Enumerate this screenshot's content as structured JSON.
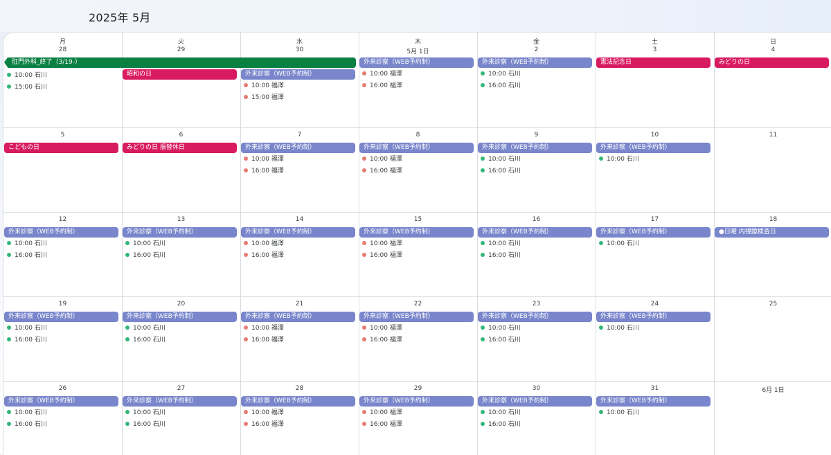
{
  "header": {
    "title": "2025年 5月"
  },
  "colors": {
    "blue": "#7986cb",
    "red": "#d81b60",
    "green": "#0b8043",
    "dot_green": "#33b679",
    "dot_salmon": "#e67c73"
  },
  "weekdays": [
    "月",
    "火",
    "水",
    "木",
    "金",
    "土",
    "日"
  ],
  "weeks": [
    {
      "days": [
        {
          "num": "28",
          "pill": null,
          "events": [
            {
              "time": "10:00",
              "name": "石川",
              "dot": "green"
            },
            {
              "time": "15:00",
              "name": "石川",
              "dot": "green"
            }
          ]
        },
        {
          "num": "29",
          "pill": {
            "label": "昭和の日",
            "color": "red"
          },
          "events": []
        },
        {
          "num": "30",
          "pill": {
            "label": "外来診察（WEB予約制）",
            "color": "blue"
          },
          "events": [
            {
              "time": "10:00",
              "name": "福澤",
              "dot": "salmon"
            },
            {
              "time": "15:00",
              "name": "福澤",
              "dot": "salmon"
            }
          ]
        },
        {
          "num": "5月 1日",
          "pill": {
            "label": "外来診察（WEB予約制）",
            "color": "blue"
          },
          "events": [
            {
              "time": "10:00",
              "name": "福澤",
              "dot": "salmon"
            },
            {
              "time": "16:00",
              "name": "福澤",
              "dot": "salmon"
            }
          ]
        },
        {
          "num": "2",
          "pill": {
            "label": "外来診察（WEB予約制）",
            "color": "blue"
          },
          "events": [
            {
              "time": "10:00",
              "name": "石川",
              "dot": "green"
            },
            {
              "time": "16:00",
              "name": "石川",
              "dot": "green"
            }
          ]
        },
        {
          "num": "3",
          "pill": {
            "label": "憲法記念日",
            "color": "red"
          },
          "events": []
        },
        {
          "num": "4",
          "pill": {
            "label": "みどりの日",
            "color": "red"
          },
          "events": []
        }
      ],
      "spanning": {
        "label": "肛門外科_終了（3/19-）",
        "color": "green"
      }
    },
    {
      "days": [
        {
          "num": "5",
          "pill": {
            "label": "こどもの日",
            "color": "red"
          },
          "events": []
        },
        {
          "num": "6",
          "pill": {
            "label": "みどりの日 振替休日",
            "color": "red"
          },
          "events": []
        },
        {
          "num": "7",
          "pill": {
            "label": "外来診察（WEB予約制）",
            "color": "blue"
          },
          "events": [
            {
              "time": "10:00",
              "name": "福澤",
              "dot": "salmon"
            },
            {
              "time": "16:00",
              "name": "福澤",
              "dot": "salmon"
            }
          ]
        },
        {
          "num": "8",
          "pill": {
            "label": "外来診察（WEB予約制）",
            "color": "blue"
          },
          "events": [
            {
              "time": "10:00",
              "name": "福澤",
              "dot": "salmon"
            },
            {
              "time": "16:00",
              "name": "福澤",
              "dot": "salmon"
            }
          ]
        },
        {
          "num": "9",
          "pill": {
            "label": "外来診察（WEB予約制）",
            "color": "blue"
          },
          "events": [
            {
              "time": "10:00",
              "name": "石川",
              "dot": "green"
            },
            {
              "time": "16:00",
              "name": "石川",
              "dot": "green"
            }
          ]
        },
        {
          "num": "10",
          "pill": {
            "label": "外来診察（WEB予約制）",
            "color": "blue"
          },
          "events": [
            {
              "time": "10:00",
              "name": "石川",
              "dot": "green"
            }
          ]
        },
        {
          "num": "11",
          "pill": null,
          "events": []
        }
      ]
    },
    {
      "days": [
        {
          "num": "12",
          "pill": {
            "label": "外来診察（WEB予約制）",
            "color": "blue"
          },
          "events": [
            {
              "time": "10:00",
              "name": "石川",
              "dot": "green"
            },
            {
              "time": "16:00",
              "name": "石川",
              "dot": "green"
            }
          ]
        },
        {
          "num": "13",
          "pill": {
            "label": "外来診察（WEB予約制）",
            "color": "blue"
          },
          "events": [
            {
              "time": "10:00",
              "name": "石川",
              "dot": "green"
            },
            {
              "time": "16:00",
              "name": "石川",
              "dot": "green"
            }
          ]
        },
        {
          "num": "14",
          "pill": {
            "label": "外来診察（WEB予約制）",
            "color": "blue"
          },
          "events": [
            {
              "time": "10:00",
              "name": "福澤",
              "dot": "salmon"
            },
            {
              "time": "16:00",
              "name": "福澤",
              "dot": "salmon"
            }
          ]
        },
        {
          "num": "15",
          "pill": {
            "label": "外来診察（WEB予約制）",
            "color": "blue"
          },
          "events": [
            {
              "time": "10:00",
              "name": "福澤",
              "dot": "salmon"
            },
            {
              "time": "16:00",
              "name": "福澤",
              "dot": "salmon"
            }
          ]
        },
        {
          "num": "16",
          "pill": {
            "label": "外来診察（WEB予約制）",
            "color": "blue"
          },
          "events": [
            {
              "time": "10:00",
              "name": "石川",
              "dot": "green"
            },
            {
              "time": "16:00",
              "name": "石川",
              "dot": "green"
            }
          ]
        },
        {
          "num": "17",
          "pill": {
            "label": "外来診察（WEB予約制）",
            "color": "blue"
          },
          "events": [
            {
              "time": "10:00",
              "name": "石川",
              "dot": "green"
            }
          ]
        },
        {
          "num": "18",
          "pill": {
            "label": "●日曜 内視鏡検査日",
            "color": "blue"
          },
          "events": []
        }
      ]
    },
    {
      "days": [
        {
          "num": "19",
          "pill": {
            "label": "外来診察（WEB予約制）",
            "color": "blue"
          },
          "events": [
            {
              "time": "10:00",
              "name": "石川",
              "dot": "green"
            },
            {
              "time": "16:00",
              "name": "石川",
              "dot": "green"
            }
          ]
        },
        {
          "num": "20",
          "pill": {
            "label": "外来診察（WEB予約制）",
            "color": "blue"
          },
          "events": [
            {
              "time": "10:00",
              "name": "石川",
              "dot": "green"
            },
            {
              "time": "16:00",
              "name": "石川",
              "dot": "green"
            }
          ]
        },
        {
          "num": "21",
          "pill": {
            "label": "外来診察（WEB予約制）",
            "color": "blue"
          },
          "events": [
            {
              "time": "10:00",
              "name": "福澤",
              "dot": "salmon"
            },
            {
              "time": "16:00",
              "name": "福澤",
              "dot": "salmon"
            }
          ]
        },
        {
          "num": "22",
          "pill": {
            "label": "外来診察（WEB予約制）",
            "color": "blue"
          },
          "events": [
            {
              "time": "10:00",
              "name": "福澤",
              "dot": "salmon"
            },
            {
              "time": "16:00",
              "name": "福澤",
              "dot": "salmon"
            }
          ]
        },
        {
          "num": "23",
          "pill": {
            "label": "外来診察（WEB予約制）",
            "color": "blue"
          },
          "events": [
            {
              "time": "10:00",
              "name": "石川",
              "dot": "green"
            },
            {
              "time": "16:00",
              "name": "石川",
              "dot": "green"
            }
          ]
        },
        {
          "num": "24",
          "pill": {
            "label": "外来診察（WEB予約制）",
            "color": "blue"
          },
          "events": [
            {
              "time": "10:00",
              "name": "石川",
              "dot": "green"
            }
          ]
        },
        {
          "num": "25",
          "pill": null,
          "events": []
        }
      ]
    },
    {
      "days": [
        {
          "num": "26",
          "pill": {
            "label": "外来診察（WEB予約制）",
            "color": "blue"
          },
          "events": [
            {
              "time": "10:00",
              "name": "石川",
              "dot": "green"
            },
            {
              "time": "16:00",
              "name": "石川",
              "dot": "green"
            }
          ]
        },
        {
          "num": "27",
          "pill": {
            "label": "外来診察（WEB予約制）",
            "color": "blue"
          },
          "events": [
            {
              "time": "10:00",
              "name": "石川",
              "dot": "green"
            },
            {
              "time": "16:00",
              "name": "石川",
              "dot": "green"
            }
          ]
        },
        {
          "num": "28",
          "pill": {
            "label": "外来診察（WEB予約制）",
            "color": "blue"
          },
          "events": [
            {
              "time": "10:00",
              "name": "福澤",
              "dot": "salmon"
            },
            {
              "time": "16:00",
              "name": "福澤",
              "dot": "salmon"
            }
          ]
        },
        {
          "num": "29",
          "pill": {
            "label": "外来診察（WEB予約制）",
            "color": "blue"
          },
          "events": [
            {
              "time": "10:00",
              "name": "福澤",
              "dot": "salmon"
            },
            {
              "time": "16:00",
              "name": "福澤",
              "dot": "salmon"
            }
          ]
        },
        {
          "num": "30",
          "pill": {
            "label": "外来診察（WEB予約制）",
            "color": "blue"
          },
          "events": [
            {
              "time": "10:00",
              "name": "石川",
              "dot": "green"
            },
            {
              "time": "16:00",
              "name": "石川",
              "dot": "green"
            }
          ]
        },
        {
          "num": "31",
          "pill": {
            "label": "外来診察（WEB予約制）",
            "color": "blue"
          },
          "events": [
            {
              "time": "10:00",
              "name": "石川",
              "dot": "green"
            }
          ]
        },
        {
          "num": "6月 1日",
          "pill": null,
          "events": []
        }
      ]
    }
  ]
}
